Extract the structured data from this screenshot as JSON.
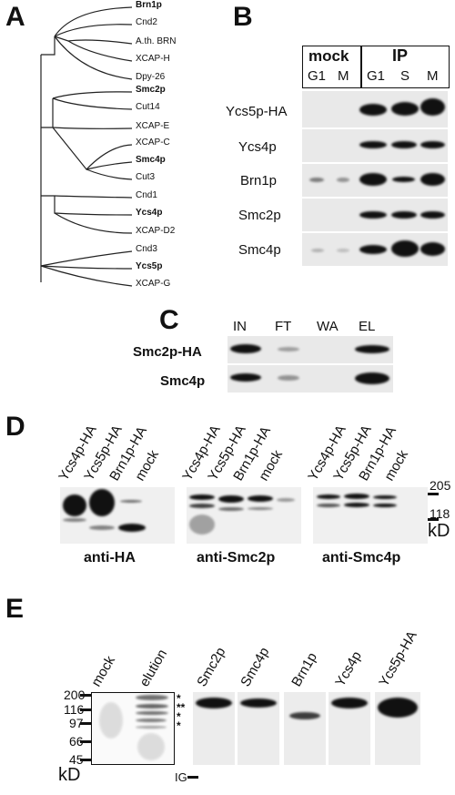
{
  "panel_A": {
    "letter": "A",
    "leaves": [
      {
        "name": "Brn1p",
        "bold": true
      },
      {
        "name": "Cnd2",
        "bold": false
      },
      {
        "name": "A.th. BRN",
        "bold": false
      },
      {
        "name": "XCAP-H",
        "bold": false
      },
      {
        "name": "Dpy-26",
        "bold": false
      },
      {
        "name": "Smc2p",
        "bold": true
      },
      {
        "name": "Cut14",
        "bold": false
      },
      {
        "name": "XCAP-E",
        "bold": false
      },
      {
        "name": "XCAP-C",
        "bold": false
      },
      {
        "name": "Smc4p",
        "bold": true
      },
      {
        "name": "Cut3",
        "bold": false
      },
      {
        "name": "Cnd1",
        "bold": false
      },
      {
        "name": "Ycs4p",
        "bold": true
      },
      {
        "name": "XCAP-D2",
        "bold": false
      },
      {
        "name": "Cnd3",
        "bold": false
      },
      {
        "name": "Ycs5p",
        "bold": true
      },
      {
        "name": "XCAP-G",
        "bold": false
      }
    ]
  },
  "panel_B": {
    "letter": "B",
    "group_mock": "mock",
    "group_ip": "IP",
    "mock_lanes": [
      "G1",
      "M"
    ],
    "ip_lanes": [
      "G1",
      "S",
      "M"
    ],
    "rows": [
      "Ycs5p-HA",
      "Ycs4p",
      "Brn1p",
      "Smc2p",
      "Smc4p"
    ]
  },
  "panel_C": {
    "letter": "C",
    "lanes": [
      "IN",
      "FT",
      "WA",
      "EL"
    ],
    "rows": [
      "Smc2p-HA",
      "Smc4p"
    ]
  },
  "panel_D": {
    "letter": "D",
    "lane_labels": [
      "Ycs4p-HA",
      "Ycs5p-HA",
      "Brn1p-HA",
      "mock"
    ],
    "blots": [
      "anti-HA",
      "anti-Smc2p",
      "anti-Smc4p"
    ],
    "markers": [
      "205",
      "118"
    ],
    "unit": "kD"
  },
  "panel_E": {
    "letter": "E",
    "gel_lanes": [
      "mock",
      "elution"
    ],
    "markers": [
      "200",
      "116",
      "97",
      "66",
      "45"
    ],
    "unit": "kD",
    "asterisks": [
      "*",
      "**",
      "*",
      "*"
    ],
    "strips": [
      "Smc2p",
      "Smc4p",
      "Brn1p",
      "Ycs4p",
      "Ycs5p-HA"
    ],
    "ig_label": "IG"
  }
}
